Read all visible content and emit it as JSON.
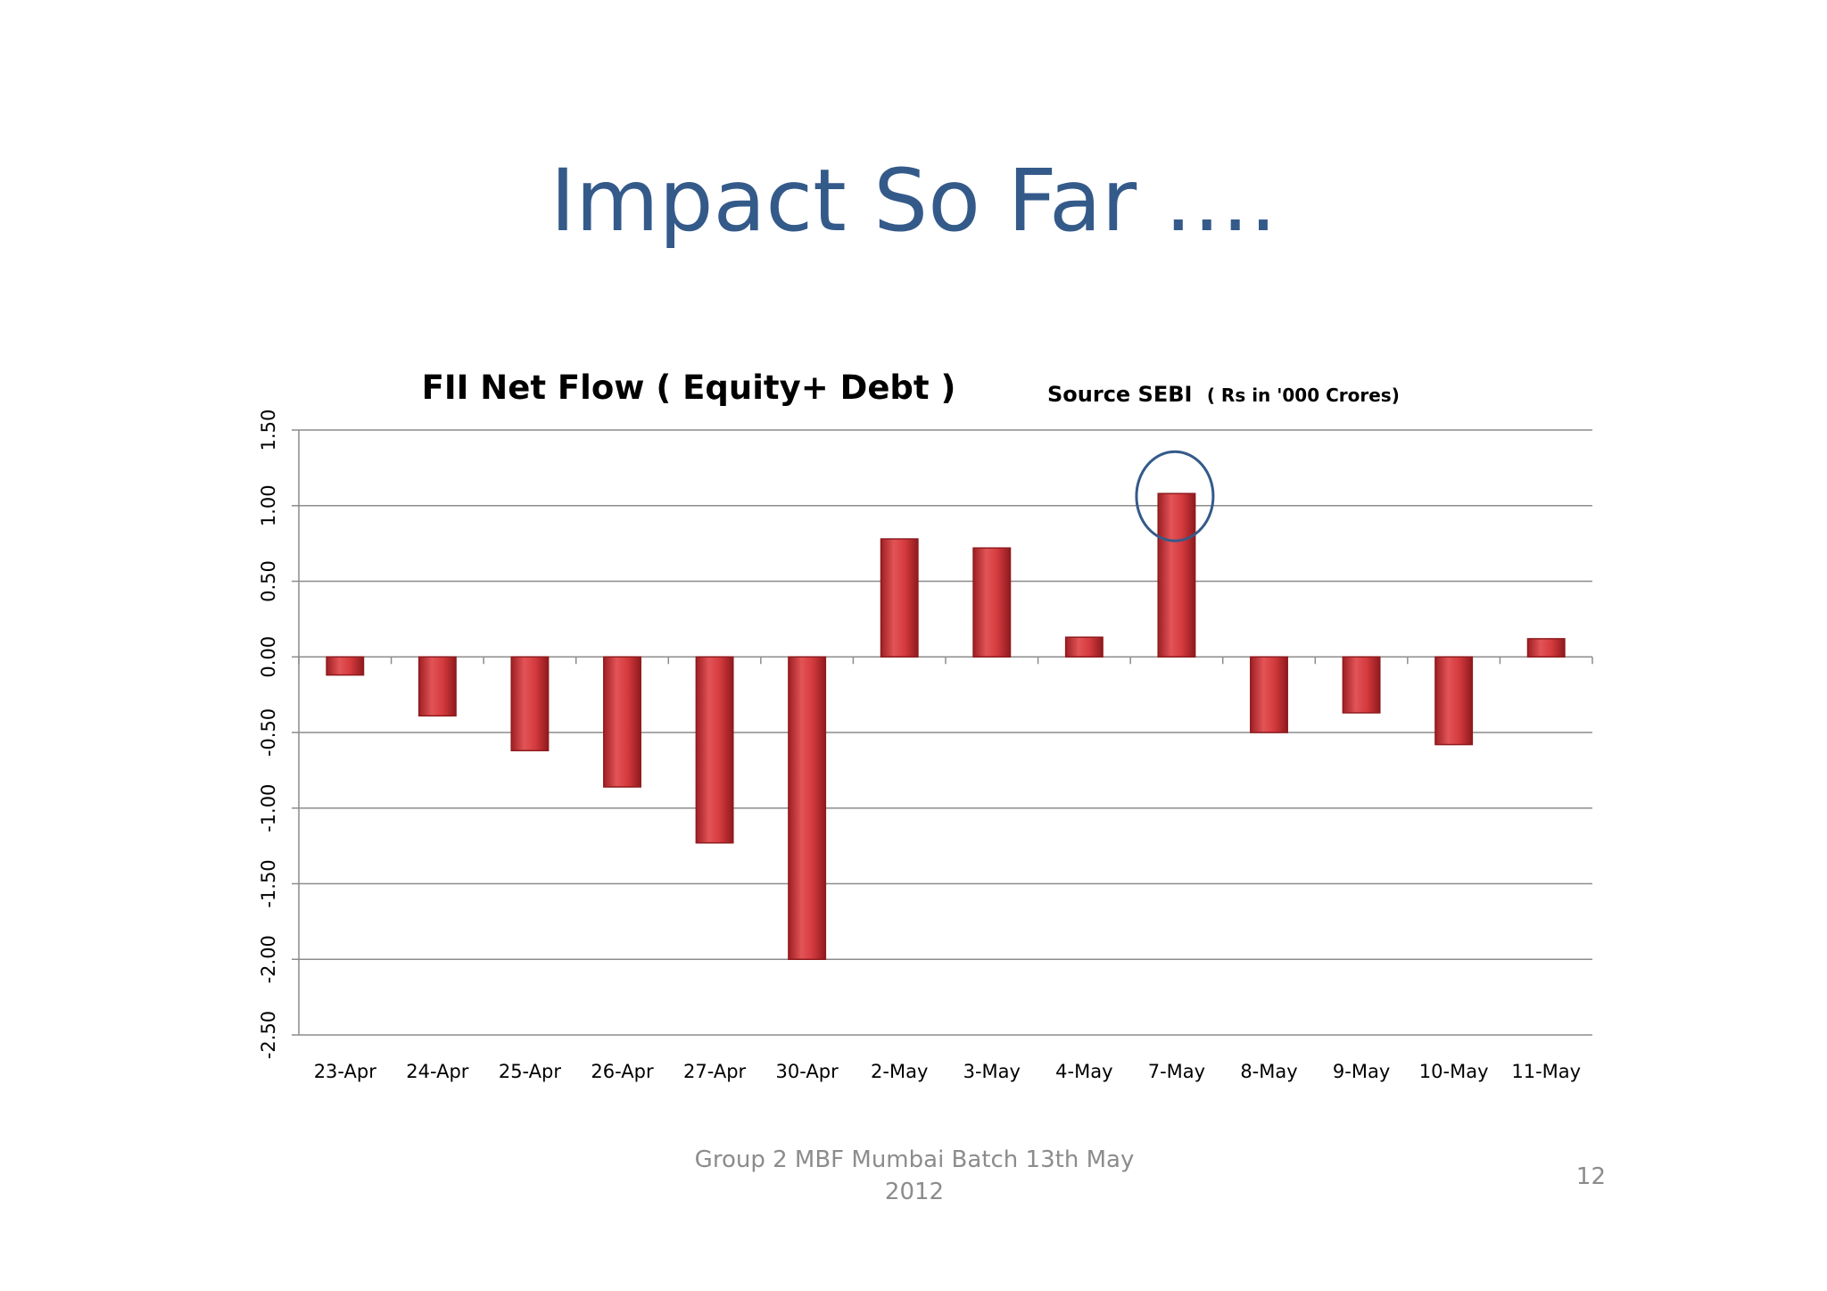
{
  "slide": {
    "title": "Impact So Far ….",
    "footer_line1": "Group 2 MBF Mumbai Batch 13th May",
    "footer_line2": "2012",
    "page_number": "12"
  },
  "chart_data": {
    "type": "bar",
    "title": "FII Net Flow ( Equity+ Debt )",
    "source_label": "Source SEBI",
    "units_note": "( Rs in '000 Crores)",
    "categories": [
      "23-Apr",
      "24-Apr",
      "25-Apr",
      "26-Apr",
      "27-Apr",
      "30-Apr",
      "2-May",
      "3-May",
      "4-May",
      "7-May",
      "8-May",
      "9-May",
      "10-May",
      "11-May"
    ],
    "values": [
      -0.12,
      -0.39,
      -0.62,
      -0.86,
      -1.23,
      -2.0,
      0.78,
      0.72,
      0.13,
      1.08,
      -0.5,
      -0.37,
      -0.58,
      0.12
    ],
    "ylim": [
      -2.5,
      1.5
    ],
    "yticks": [
      "1.50",
      "1.00",
      "0.50",
      "0.00",
      "-0.50",
      "-1.00",
      "-1.50",
      "-2.00",
      "-2.50"
    ],
    "ytick_values": [
      1.5,
      1.0,
      0.5,
      0.0,
      -0.5,
      -1.0,
      -1.5,
      -2.0,
      -2.5
    ],
    "grid": true,
    "highlighted_category": "7-May",
    "colors": {
      "bar": "#c8282d",
      "bar_light": "#e2585b",
      "bar_dark": "#8f1a1d",
      "grid": "#8c8c8c",
      "highlight_circle": "#345a8a",
      "title": "#345a8a"
    }
  }
}
